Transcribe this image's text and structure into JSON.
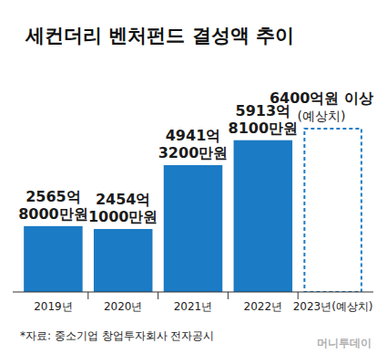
{
  "chart_data": {
    "type": "bar",
    "title": "세컨더리 벤처펀드 결성액 추이",
    "categories": [
      "2019년",
      "2020년",
      "2021년",
      "2022년",
      "2023년(예상치)"
    ],
    "values": [
      2565.8,
      2454.1,
      4941.32,
      5913.81,
      6400
    ],
    "value_labels": [
      "2565억\n8000만원",
      "2454억\n1000만원",
      "4941억\n3200만원",
      "5913억\n8100만원",
      "6400억원 이상\n(예상치)"
    ],
    "color": "#1b7bc4",
    "colors": [
      "#1b7bc4",
      "#1b7bc4",
      "#1b7bc4",
      "#1b7bc4",
      "none"
    ],
    "ylim": [
      0,
      6400
    ],
    "data_labels": true,
    "tick_labels": "x",
    "source": "*자료: 중소기업 창업투자회사 전자공시",
    "credit": "머니투데이"
  }
}
